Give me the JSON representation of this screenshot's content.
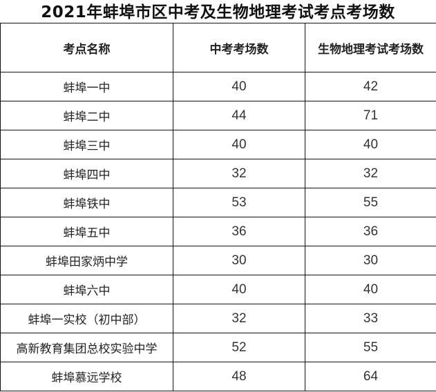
{
  "title": "2021年蚌埠市区中考及生物地理考试考点考场数",
  "headers": [
    "考点名称",
    "中考考场数",
    "生物地理考试考场数"
  ],
  "rows": [
    [
      "蚌埠一中",
      "40",
      "42"
    ],
    [
      "蚌埠二中",
      "44",
      "71"
    ],
    [
      "蚌埠三中",
      "40",
      "40"
    ],
    [
      "蚌埠四中",
      "32",
      "32"
    ],
    [
      "蚌埠铁中",
      "53",
      "55"
    ],
    [
      "蚌埠五中",
      "36",
      "36"
    ],
    [
      "蚌埠田家炳中学",
      "30",
      "30"
    ],
    [
      "蚌埠六中",
      "40",
      "40"
    ],
    [
      "蚌埠一实校（初中部）",
      "32",
      "33"
    ],
    [
      "高新教育集团总校实验中学",
      "52",
      "55"
    ],
    [
      "蚌埠慕远学校",
      "48",
      "64"
    ]
  ]
}
